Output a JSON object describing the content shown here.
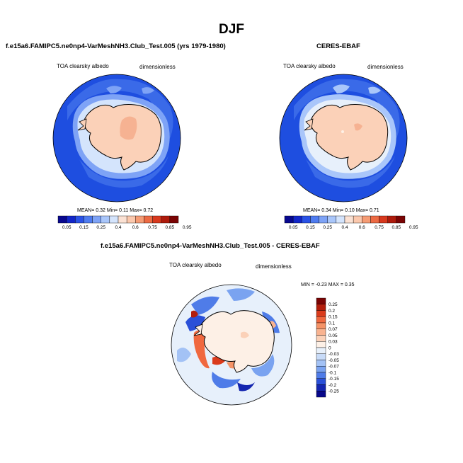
{
  "page": {
    "title": "DJF"
  },
  "chart_data": [
    {
      "type": "heatmap",
      "title": "f.e15a6.FAMIPC5.ne0np4-VarMeshNH3.Club_Test.005 (yrs 1979-1980)",
      "left_label": "TOA clearsky albedo",
      "right_label": "dimensionless",
      "stats": {
        "mean_label": "MEAN=",
        "mean": "0.32",
        "min_label": "Min=",
        "min": "0.11",
        "max_label": "Max=",
        "max": "0.72"
      },
      "colorbar": {
        "ticks": [
          "0.05",
          "0.15",
          "0.25",
          "0.4",
          "0.6",
          "0.75",
          "0.85",
          "0.95"
        ],
        "colors": [
          "#08088e",
          "#1226c8",
          "#2a52e6",
          "#4f7cf0",
          "#7ea3f6",
          "#a9c6fa",
          "#d4e4fc",
          "#fbe1d3",
          "#fbc8ad",
          "#f59c75",
          "#ec6a43",
          "#d8391e",
          "#ae1b0c",
          "#7a0404"
        ]
      }
    },
    {
      "type": "heatmap",
      "title": "CERES-EBAF",
      "left_label": "TOA clearsky albedo",
      "right_label": "dimensionless",
      "stats": {
        "mean_label": "MEAN=",
        "mean": "0.34",
        "min_label": "Min=",
        "min": "0.10",
        "max_label": "Max=",
        "max": "0.71"
      },
      "colorbar": {
        "ticks": [
          "0.05",
          "0.15",
          "0.25",
          "0.4",
          "0.6",
          "0.75",
          "0.85",
          "0.95"
        ],
        "colors": [
          "#08088e",
          "#1226c8",
          "#2a52e6",
          "#4f7cf0",
          "#7ea3f6",
          "#a9c6fa",
          "#d4e4fc",
          "#fbe1d3",
          "#fbc8ad",
          "#f59c75",
          "#ec6a43",
          "#d8391e",
          "#ae1b0c",
          "#7a0404"
        ]
      }
    },
    {
      "type": "heatmap",
      "title": "f.e15a6.FAMIPC5.ne0np4-VarMeshNH3.Club_Test.005 - CERES-EBAF",
      "left_label": "TOA clearsky albedo",
      "right_label": "dimensionless",
      "stats": {
        "min_label": "MIN =",
        "min": "-0.23",
        "max_label": "MAX =",
        "max": "0.35"
      },
      "colorbar": {
        "orientation": "vertical",
        "ticks": [
          "0.25",
          "0.2",
          "0.15",
          "0.1",
          "0.07",
          "0.05",
          "0.03",
          "0",
          "-0.03",
          "-0.05",
          "-0.07",
          "-0.1",
          "-0.15",
          "-0.2",
          "-0.25"
        ],
        "colors": [
          "#7a0404",
          "#b31d0b",
          "#da3b1c",
          "#f0683f",
          "#f59367",
          "#f9b390",
          "#fbd1b8",
          "#fdf0e6",
          "#e7f0fb",
          "#c8dbf8",
          "#a3c2f5",
          "#7aa3f0",
          "#4f7ce8",
          "#2a50d8",
          "#1426b0",
          "#08088a"
        ]
      }
    }
  ]
}
